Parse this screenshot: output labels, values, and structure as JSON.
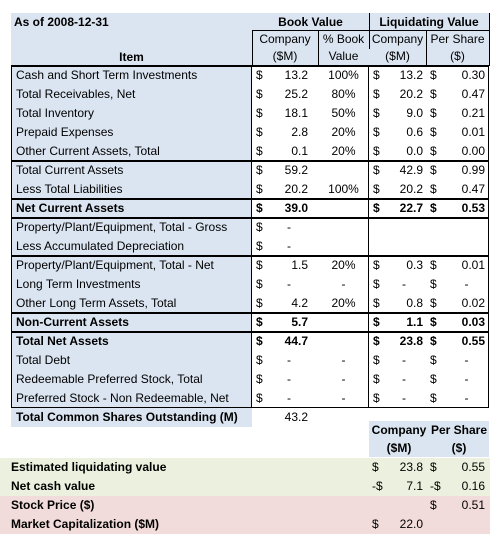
{
  "as_of": "As of 2008-12-31",
  "headers": {
    "book_value": "Book Value",
    "liquidating_value": "Liquidating Value",
    "item": "Item",
    "company": "Company",
    "company_unit": "($M)",
    "pct_book": "% Book",
    "pct_book_unit": "Value",
    "per_share": "Per Share",
    "per_share_unit": "($)"
  },
  "rows": [
    {
      "label": "Cash and Short Term Investments",
      "bv": "13.2",
      "pct": "100%",
      "lv": "13.2",
      "ps": "0.30"
    },
    {
      "label": "Total Receivables, Net",
      "bv": "25.2",
      "pct": "80%",
      "lv": "20.2",
      "ps": "0.47"
    },
    {
      "label": "Total Inventory",
      "bv": "18.1",
      "pct": "50%",
      "lv": "9.0",
      "ps": "0.21"
    },
    {
      "label": "Prepaid Expenses",
      "bv": "2.8",
      "pct": "20%",
      "lv": "0.6",
      "ps": "0.01"
    },
    {
      "label": "Other Current Assets, Total",
      "bv": "0.1",
      "pct": "20%",
      "lv": "0.0",
      "ps": "0.00"
    },
    {
      "label": "Total Current Assets",
      "bv": "59.2",
      "pct": "",
      "lv": "42.9",
      "ps": "0.99"
    },
    {
      "label": "Less Total Liabilities",
      "bv": "20.2",
      "pct": "100%",
      "lv": "20.2",
      "ps": "0.47"
    },
    {
      "label": "Net Current Assets",
      "bv": "39.0",
      "pct": "",
      "lv": "22.7",
      "ps": "0.53",
      "bold": true
    },
    {
      "label": "Property/Plant/Equipment, Total - Gross",
      "bv": "-",
      "pct": "",
      "lv": null,
      "ps": null
    },
    {
      "label": "Less Accumulated Depreciation",
      "bv": "-",
      "pct": "",
      "lv": null,
      "ps": null
    },
    {
      "label": "Property/Plant/Equipment, Total - Net",
      "bv": "1.5",
      "pct": "20%",
      "lv": "0.3",
      "ps": "0.01"
    },
    {
      "label": "Long Term Investments",
      "bv": "-",
      "pct": "-",
      "lv": "-",
      "ps": "-"
    },
    {
      "label": "Other Long Term Assets, Total",
      "bv": "4.2",
      "pct": "20%",
      "lv": "0.8",
      "ps": "0.02"
    },
    {
      "label": "Non-Current Assets",
      "bv": "5.7",
      "pct": "",
      "lv": "1.1",
      "ps": "0.03",
      "bold": true
    },
    {
      "label": "Total Net Assets",
      "bv": "44.7",
      "pct": "",
      "lv": "23.8",
      "ps": "0.55",
      "bold": true
    },
    {
      "label": "Total Debt",
      "bv": "-",
      "pct": "-",
      "lv": "-",
      "ps": "-"
    },
    {
      "label": "Redeemable Preferred Stock, Total",
      "bv": "-",
      "pct": "-",
      "lv": "-",
      "ps": "-"
    },
    {
      "label": "Preferred Stock - Non Redeemable, Net",
      "bv": "-",
      "pct": "-",
      "lv": "-",
      "ps": "-"
    }
  ],
  "shares_row": {
    "label": "Total Common Shares Outstanding (M)",
    "value": "43.2"
  },
  "summary_headers": {
    "company": "Company",
    "company_unit": "($M)",
    "per_share": "Per Share",
    "per_share_unit": "($)"
  },
  "summary": [
    {
      "label": "Estimated liquidating value",
      "cur": "$",
      "company": "23.8",
      "ps_cur": "$",
      "ps": "0.55",
      "color": "#ebf1de"
    },
    {
      "label": "Net cash value",
      "cur": "-$",
      "company": "7.1",
      "ps_cur": "-$",
      "ps": "0.16",
      "color": "#ebf1de"
    },
    {
      "label": "Stock Price ($)",
      "cur": "",
      "company": "",
      "ps_cur": "$",
      "ps": "0.51",
      "color": "#f2dcdb"
    },
    {
      "label": "Market Capitalization ($M)",
      "cur": "$",
      "company": "22.0",
      "ps_cur": "",
      "ps": "",
      "color": "#f2dcdb"
    }
  ],
  "currency_symbol": "$",
  "colors": {
    "blue": "#dbe5f1",
    "green": "#ebf1de",
    "pink": "#f2dcdb",
    "border": "#000000"
  }
}
